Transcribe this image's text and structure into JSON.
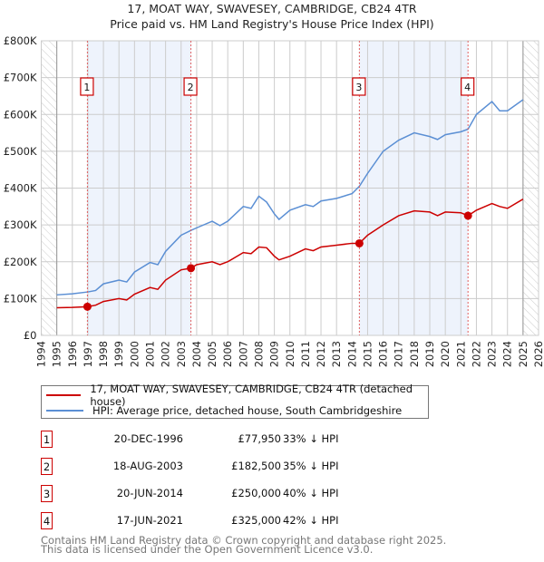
{
  "chart_data": {
    "type": "line",
    "title": "17, MOAT WAY, SWAVESEY, CAMBRIDGE, CB24 4TR",
    "subtitle": "Price paid vs. HM Land Registry's House Price Index (HPI)",
    "xlim": [
      1994,
      2026
    ],
    "ylim": [
      0,
      800000
    ],
    "x_ticks": [
      1994,
      1995,
      1996,
      1997,
      1998,
      1999,
      2000,
      2001,
      2002,
      2003,
      2004,
      2005,
      2006,
      2007,
      2008,
      2009,
      2010,
      2011,
      2012,
      2013,
      2014,
      2015,
      2016,
      2017,
      2018,
      2019,
      2020,
      2021,
      2022,
      2023,
      2024,
      2025,
      2026
    ],
    "y_ticks": [
      0,
      100000,
      200000,
      300000,
      400000,
      500000,
      600000,
      700000,
      800000
    ],
    "y_tick_labels": [
      "£0",
      "£100K",
      "£200K",
      "£300K",
      "£400K",
      "£500K",
      "£600K",
      "£700K",
      "£800K"
    ],
    "grid": true,
    "data_range": [
      1995,
      2025
    ],
    "series": [
      {
        "name": "17, MOAT WAY, SWAVESEY, CAMBRIDGE, CB24 4TR (detached house)",
        "color": "#cc0000",
        "x": [
          1995,
          1996,
          1996.97,
          1997.5,
          1998,
          1999,
          1999.5,
          2000,
          2001,
          2001.5,
          2002,
          2003,
          2003.63,
          2004,
          2005,
          2005.5,
          2006,
          2007,
          2007.5,
          2008,
          2008.5,
          2009,
          2009.3,
          2010,
          2011,
          2011.5,
          2012,
          2013,
          2014,
          2014.47,
          2015,
          2016,
          2017,
          2018,
          2019,
          2019.5,
          2020,
          2021,
          2021.46,
          2022,
          2023,
          2023.5,
          2024,
          2025
        ],
        "y": [
          75000,
          76000,
          77950,
          82000,
          92000,
          100000,
          96000,
          112000,
          130000,
          125000,
          150000,
          178000,
          182500,
          192000,
          200000,
          192000,
          200000,
          225000,
          222000,
          240000,
          238000,
          215000,
          205000,
          215000,
          235000,
          230000,
          240000,
          245000,
          250000,
          250000,
          272000,
          300000,
          325000,
          338000,
          335000,
          325000,
          335000,
          333000,
          325000,
          340000,
          358000,
          350000,
          345000,
          370000
        ]
      },
      {
        "name": "HPI: Average price, detached house, South Cambridgeshire",
        "color": "#5b8fd4",
        "x": [
          1995,
          1996,
          1997,
          1997.5,
          1998,
          1999,
          1999.5,
          2000,
          2001,
          2001.5,
          2002,
          2003,
          2003.63,
          2004,
          2005,
          2005.5,
          2006,
          2007,
          2007.5,
          2008,
          2008.5,
          2009,
          2009.3,
          2010,
          2011,
          2011.5,
          2012,
          2013,
          2014,
          2014.47,
          2015,
          2016,
          2017,
          2018,
          2019,
          2019.5,
          2020,
          2021,
          2021.46,
          2022,
          2023,
          2023.5,
          2024,
          2025
        ],
        "y": [
          110000,
          113000,
          118000,
          122000,
          140000,
          150000,
          145000,
          172000,
          198000,
          192000,
          228000,
          272000,
          285000,
          292000,
          310000,
          298000,
          310000,
          350000,
          345000,
          378000,
          362000,
          330000,
          315000,
          340000,
          355000,
          350000,
          365000,
          372000,
          385000,
          405000,
          440000,
          500000,
          530000,
          550000,
          540000,
          532000,
          545000,
          553000,
          560000,
          600000,
          635000,
          610000,
          610000,
          640000
        ]
      }
    ],
    "sales": [
      {
        "label": "1",
        "date": "20-DEC-1996",
        "x": 1996.97,
        "price": "£77,950",
        "price_value": 77950,
        "hpi": "33% ↓ HPI"
      },
      {
        "label": "2",
        "date": "18-AUG-2003",
        "x": 2003.63,
        "price": "£182,500",
        "price_value": 182500,
        "hpi": "35% ↓ HPI"
      },
      {
        "label": "3",
        "date": "20-JUN-2014",
        "x": 2014.47,
        "price": "£250,000",
        "price_value": 250000,
        "hpi": "40% ↓ HPI"
      },
      {
        "label": "4",
        "date": "17-JUN-2021",
        "x": 2021.46,
        "price": "£325,000",
        "price_value": 325000,
        "hpi": "42% ↓ HPI"
      }
    ],
    "legend_placement": "below"
  },
  "legend": {
    "property": "17, MOAT WAY, SWAVESEY, CAMBRIDGE, CB24 4TR (detached house)",
    "hpi": "HPI: Average price, detached house, South Cambridgeshire"
  },
  "footer": {
    "line1": "Contains HM Land Registry data © Crown copyright and database right 2025.",
    "line2": "This data is licensed under the Open Government Licence v3.0."
  },
  "colors": {
    "red": "#cc0000",
    "blue": "#5b8fd4",
    "shade": "#eef3fc"
  }
}
